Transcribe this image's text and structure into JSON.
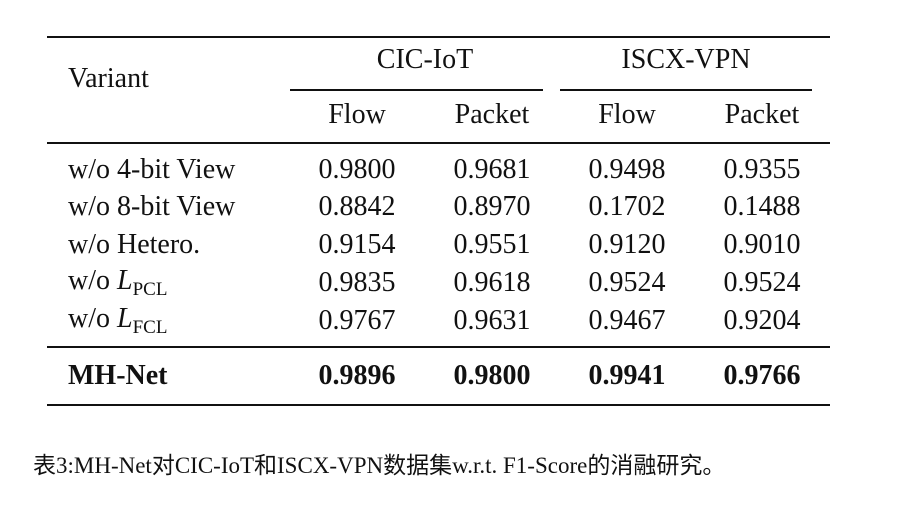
{
  "table": {
    "header": {
      "variant": "Variant",
      "groups": [
        "CIC-IoT",
        "ISCX-VPN"
      ],
      "subheaders": [
        "Flow",
        "Packet",
        "Flow",
        "Packet"
      ]
    },
    "rows": [
      {
        "variant": "w/o 4-bit View",
        "values": [
          "0.9800",
          "0.9681",
          "0.9498",
          "0.9355"
        ]
      },
      {
        "variant": "w/o 8-bit View",
        "values": [
          "0.8842",
          "0.8970",
          "0.1702",
          "0.1488"
        ]
      },
      {
        "variant": "w/o Hetero.",
        "values": [
          "0.9154",
          "0.9551",
          "0.9120",
          "0.9010"
        ]
      },
      {
        "variant": {
          "prefix": "w/o ",
          "symbol": "L",
          "subscript": "PCL"
        },
        "values": [
          "0.9835",
          "0.9618",
          "0.9524",
          "0.9524"
        ]
      },
      {
        "variant": {
          "prefix": "w/o ",
          "symbol": "L",
          "subscript": "FCL"
        },
        "values": [
          "0.9767",
          "0.9631",
          "0.9467",
          "0.9204"
        ]
      }
    ],
    "best": {
      "variant": "MH-Net",
      "values": [
        "0.9896",
        "0.9800",
        "0.9941",
        "0.9766"
      ]
    }
  },
  "caption": "表3:MH-Net对CIC-IoT和ISCX-VPN数据集w.r.t. F1-Score的消融研究。"
}
